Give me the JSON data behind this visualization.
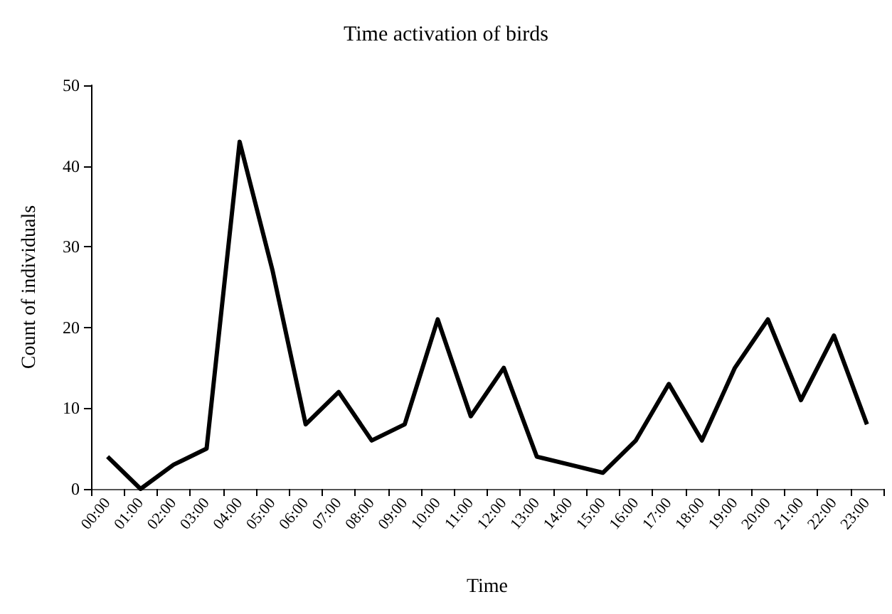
{
  "chart_data": {
    "type": "line",
    "title": "Time activation of birds",
    "xlabel": "Time",
    "ylabel": "Count of individuals",
    "categories": [
      "00:00",
      "01:00",
      "02:00",
      "03:00",
      "04:00",
      "05:00",
      "06:00",
      "07:00",
      "08:00",
      "09:00",
      "10:00",
      "11:00",
      "12:00",
      "13:00",
      "14:00",
      "15:00",
      "16:00",
      "17:00",
      "18:00",
      "19:00",
      "20:00",
      "21:00",
      "22:00",
      "23:00"
    ],
    "series": [
      {
        "color": "#000000",
        "values": [
          4,
          0,
          3,
          5,
          43,
          27,
          8,
          12,
          6,
          8,
          21,
          9,
          15,
          4,
          3,
          2,
          6,
          13,
          6,
          15,
          21,
          11,
          19,
          8
        ]
      }
    ],
    "ylim": [
      0,
      50
    ],
    "yticks": [
      0,
      10,
      20,
      30,
      40,
      50
    ],
    "marker": "none",
    "line_style": "solid"
  }
}
